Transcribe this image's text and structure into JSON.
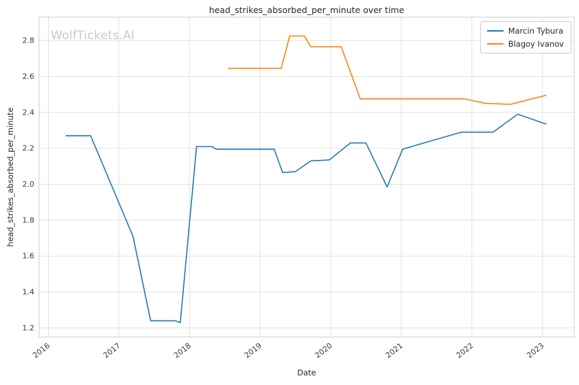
{
  "watermark": "WolfTickets.AI",
  "chart_data": {
    "type": "line",
    "title": "head_strikes_absorbed_per_minute over time",
    "xlabel": "Date",
    "ylabel": "head_strikes_absorbed_per_minute",
    "grid": true,
    "legend_position": "upper right",
    "xlim": [
      2015.87,
      2023.45
    ],
    "ylim": [
      1.15,
      2.93
    ],
    "xticks": [
      2016,
      2017,
      2018,
      2019,
      2020,
      2021,
      2022,
      2023
    ],
    "yticks": [
      1.2,
      1.4,
      1.6,
      1.8,
      2.0,
      2.2,
      2.4,
      2.6,
      2.8
    ],
    "series": [
      {
        "name": "Marcin Tybura",
        "color": "#1f77b4",
        "x": [
          2016.25,
          2016.6,
          2017.2,
          2017.45,
          2017.8,
          2017.87,
          2018.1,
          2018.32,
          2018.38,
          2019.2,
          2019.32,
          2019.5,
          2019.72,
          2019.98,
          2020.28,
          2020.5,
          2020.8,
          2021.02,
          2021.5,
          2021.85,
          2022.3,
          2022.65,
          2023.05
        ],
        "y": [
          2.27,
          2.27,
          1.71,
          1.24,
          1.24,
          1.23,
          2.21,
          2.21,
          2.195,
          2.195,
          2.065,
          2.07,
          2.13,
          2.135,
          2.23,
          2.23,
          1.985,
          2.195,
          2.25,
          2.29,
          2.29,
          2.39,
          2.335
        ]
      },
      {
        "name": "Blagoy Ivanov",
        "color": "#ff7f0e",
        "x": [
          2018.55,
          2019.3,
          2019.42,
          2019.63,
          2019.72,
          2020.15,
          2020.42,
          2021.9,
          2022.2,
          2022.55,
          2023.05
        ],
        "y": [
          2.645,
          2.645,
          2.825,
          2.825,
          2.765,
          2.765,
          2.475,
          2.475,
          2.45,
          2.445,
          2.495
        ]
      }
    ]
  }
}
